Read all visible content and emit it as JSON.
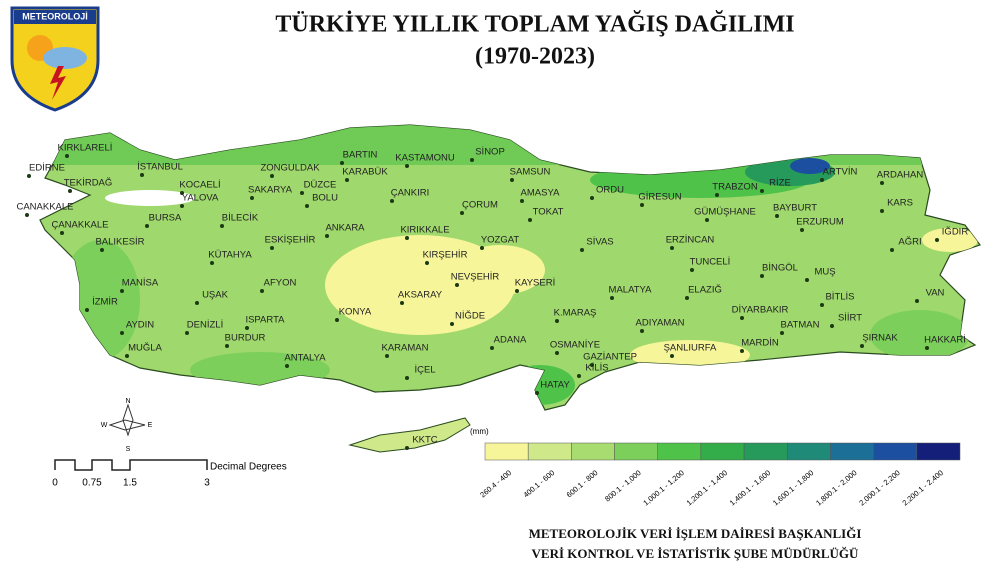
{
  "logo": {
    "text": "METEOROLOJİ"
  },
  "header": {
    "title": "TÜRKİYE YILLIK TOPLAM YAĞIŞ DAĞILIMI",
    "subtitle": "(1970-2023)"
  },
  "map": {
    "labels": [
      "KIRKLARELİ",
      "EDİRNE",
      "İSTANBUL",
      "TEKİRDAĞ",
      "KOCAELİ",
      "ZONGULDAK",
      "BARTIN",
      "KASTAMONU",
      "SİNOP",
      "SAMSUN",
      "CANAKKALE",
      "YALOVA",
      "SAKARYA",
      "DÜZCE",
      "KARABÜK",
      "ÇANKIRI",
      "AMASYA",
      "ORDU",
      "GİRESUN",
      "TRABZON",
      "RİZE",
      "ARTVİN",
      "ARDAHAN",
      "BURSA",
      "BİLECİK",
      "BOLU",
      "ÇORUM",
      "TOKAT",
      "GÜMÜŞHANE",
      "BAYBURT",
      "KARS",
      "ÇANAKKALE",
      "ERZURUM",
      "IĞDIR",
      "BALIKESİR",
      "ESKİŞEHİR",
      "ANKARA",
      "KIRIKKALE",
      "YOZGAT",
      "SİVAS",
      "ERZİNCAN",
      "AĞRI",
      "KÜTAHYA",
      "KIRŞEHİR",
      "TUNCELİ",
      "BİNGÖL",
      "MUŞ",
      "MANİSA",
      "AFYON",
      "NEVŞEHİR",
      "KAYSERİ",
      "MALATYA",
      "ELAZIĞ",
      "BİTLİS",
      "VAN",
      "İZMİR",
      "UŞAK",
      "AKSARAY",
      "DİYARBAKIR",
      "AYDIN",
      "DENİZLİ",
      "ISPARTA",
      "KONYA",
      "NİĞDE",
      "K.MARAŞ",
      "ADIYAMAN",
      "BATMAN",
      "SİİRT",
      "MUĞLA",
      "BURDUR",
      "KARAMAN",
      "ADANA",
      "OSMANİYE",
      "ŞANLIURFA",
      "MARDİN",
      "ŞIRNAK",
      "HAKKARİ",
      "ANTALYA",
      "GAZİANTEP",
      "KİLİS",
      "İÇEL",
      "HATAY",
      "KKTC"
    ]
  },
  "legend": {
    "unit": "(mm)",
    "bins": [
      {
        "label": "260.4 - 400",
        "color": "#f7f59a"
      },
      {
        "label": "400.1 - 600",
        "color": "#cfe88a"
      },
      {
        "label": "600.1 - 800",
        "color": "#a8dc70"
      },
      {
        "label": "800.1 - 1,000",
        "color": "#7ccf5a"
      },
      {
        "label": "1,000.1 - 1,200",
        "color": "#4fc24a"
      },
      {
        "label": "1,200.1 - 1,400",
        "color": "#33ad4a"
      },
      {
        "label": "1,400.1 - 1,600",
        "color": "#269a5a"
      },
      {
        "label": "1,600.1 - 1,800",
        "color": "#1f8a78"
      },
      {
        "label": "1,800.1 - 2,000",
        "color": "#1c6f96"
      },
      {
        "label": "2,000.1 - 2,200",
        "color": "#1c4fa0"
      },
      {
        "label": "2,200.1 - 2,400",
        "color": "#141f7a"
      }
    ]
  },
  "compass": {
    "n": "N",
    "e": "E",
    "s": "S",
    "w": "W"
  },
  "scale": {
    "ticks": [
      "0",
      "0.75",
      "1.5",
      "3"
    ],
    "unit": "Decimal Degrees"
  },
  "footer": {
    "line1": "METEOROLOJİK VERİ İŞLEM DAİRESİ BAŞKANLIĞI",
    "line2": "VERİ KONTROL VE İSTATİSTİK ŞUBE MÜDÜRLÜĞÜ"
  }
}
